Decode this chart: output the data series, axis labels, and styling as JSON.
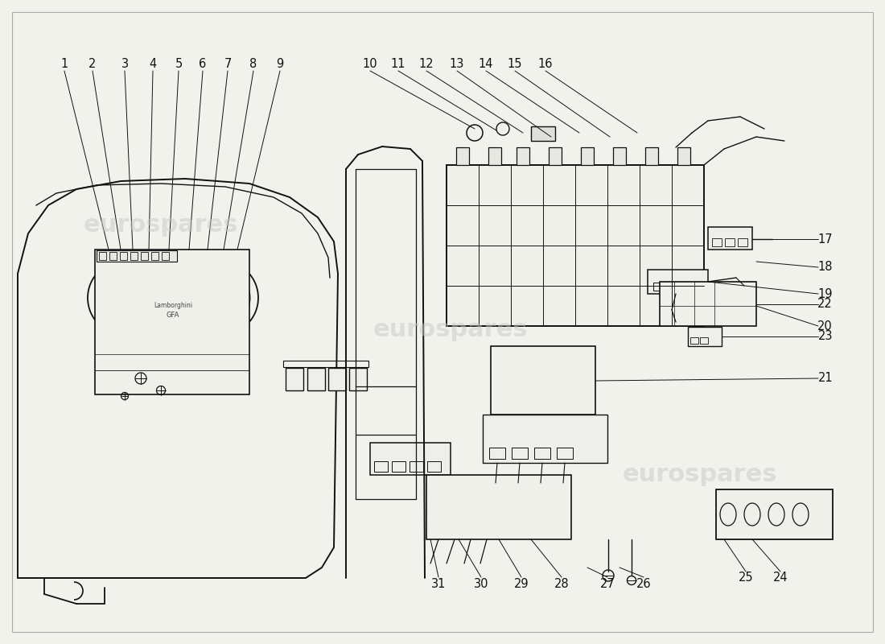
{
  "background_color": "#f2f2ed",
  "line_color": "#111111",
  "watermark_text": "eurospares",
  "watermark_color": "#c8c8c8",
  "label_fontsize": 10.5,
  "border_color": "#aaaaaa"
}
